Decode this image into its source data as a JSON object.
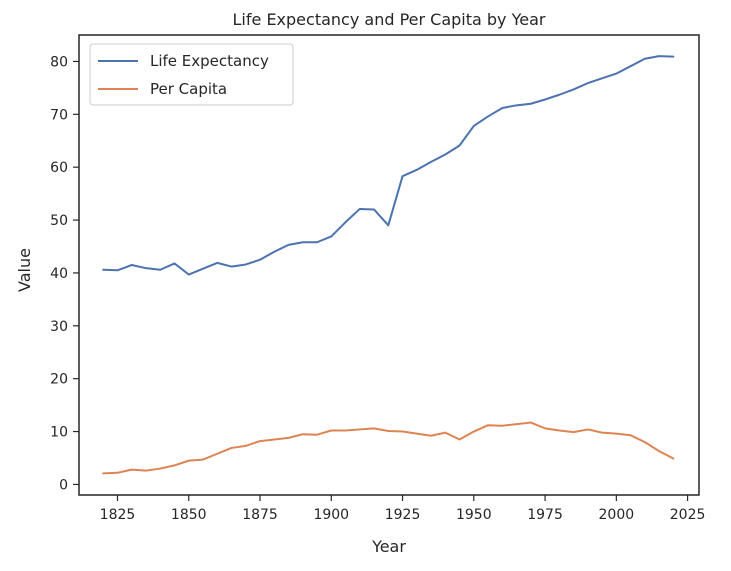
{
  "chart_data": {
    "type": "line",
    "title": "Life Expectancy and Per Capita by Year",
    "xlabel": "Year",
    "ylabel": "Value",
    "xlim": [
      1811.5,
      2029
    ],
    "ylim": [
      -2,
      85
    ],
    "xticks": [
      1825,
      1850,
      1875,
      1900,
      1925,
      1950,
      1975,
      2000,
      2025
    ],
    "yticks": [
      0,
      10,
      20,
      30,
      40,
      50,
      60,
      70,
      80
    ],
    "grid": false,
    "legend_position": "top-left",
    "x": [
      1820,
      1825,
      1830,
      1835,
      1840,
      1845,
      1850,
      1855,
      1860,
      1865,
      1870,
      1875,
      1880,
      1885,
      1890,
      1895,
      1900,
      1905,
      1910,
      1915,
      1920,
      1925,
      1930,
      1935,
      1940,
      1945,
      1950,
      1955,
      1960,
      1965,
      1970,
      1975,
      1980,
      1985,
      1990,
      1995,
      2000,
      2005,
      2010,
      2015,
      2020
    ],
    "series": [
      {
        "name": "Life Expectancy",
        "color": "#4c72b0",
        "values": [
          40.6,
          40.5,
          41.5,
          40.9,
          40.6,
          41.8,
          39.7,
          40.8,
          41.9,
          41.2,
          41.6,
          42.5,
          44.0,
          45.3,
          45.8,
          45.8,
          46.9,
          49.6,
          52.1,
          52.0,
          49.0,
          58.3,
          59.5,
          61.0,
          62.4,
          64.1,
          67.8,
          69.6,
          71.2,
          71.7,
          72.0,
          72.8,
          73.7,
          74.7,
          75.9,
          76.8,
          77.7,
          79.1,
          80.5,
          81.0,
          80.9
        ]
      },
      {
        "name": "Per Capita",
        "color": "#dd8452",
        "values": [
          2.1,
          2.2,
          2.8,
          2.6,
          3.0,
          3.6,
          4.5,
          4.7,
          5.8,
          6.9,
          7.3,
          8.2,
          8.5,
          8.8,
          9.5,
          9.4,
          10.2,
          10.2,
          10.4,
          10.6,
          10.1,
          10.0,
          9.6,
          9.2,
          9.8,
          8.5,
          10.0,
          11.2,
          11.1,
          11.4,
          11.7,
          10.6,
          10.2,
          9.9,
          10.4,
          9.8,
          9.6,
          9.3,
          8.0,
          6.3,
          4.9
        ]
      }
    ]
  }
}
